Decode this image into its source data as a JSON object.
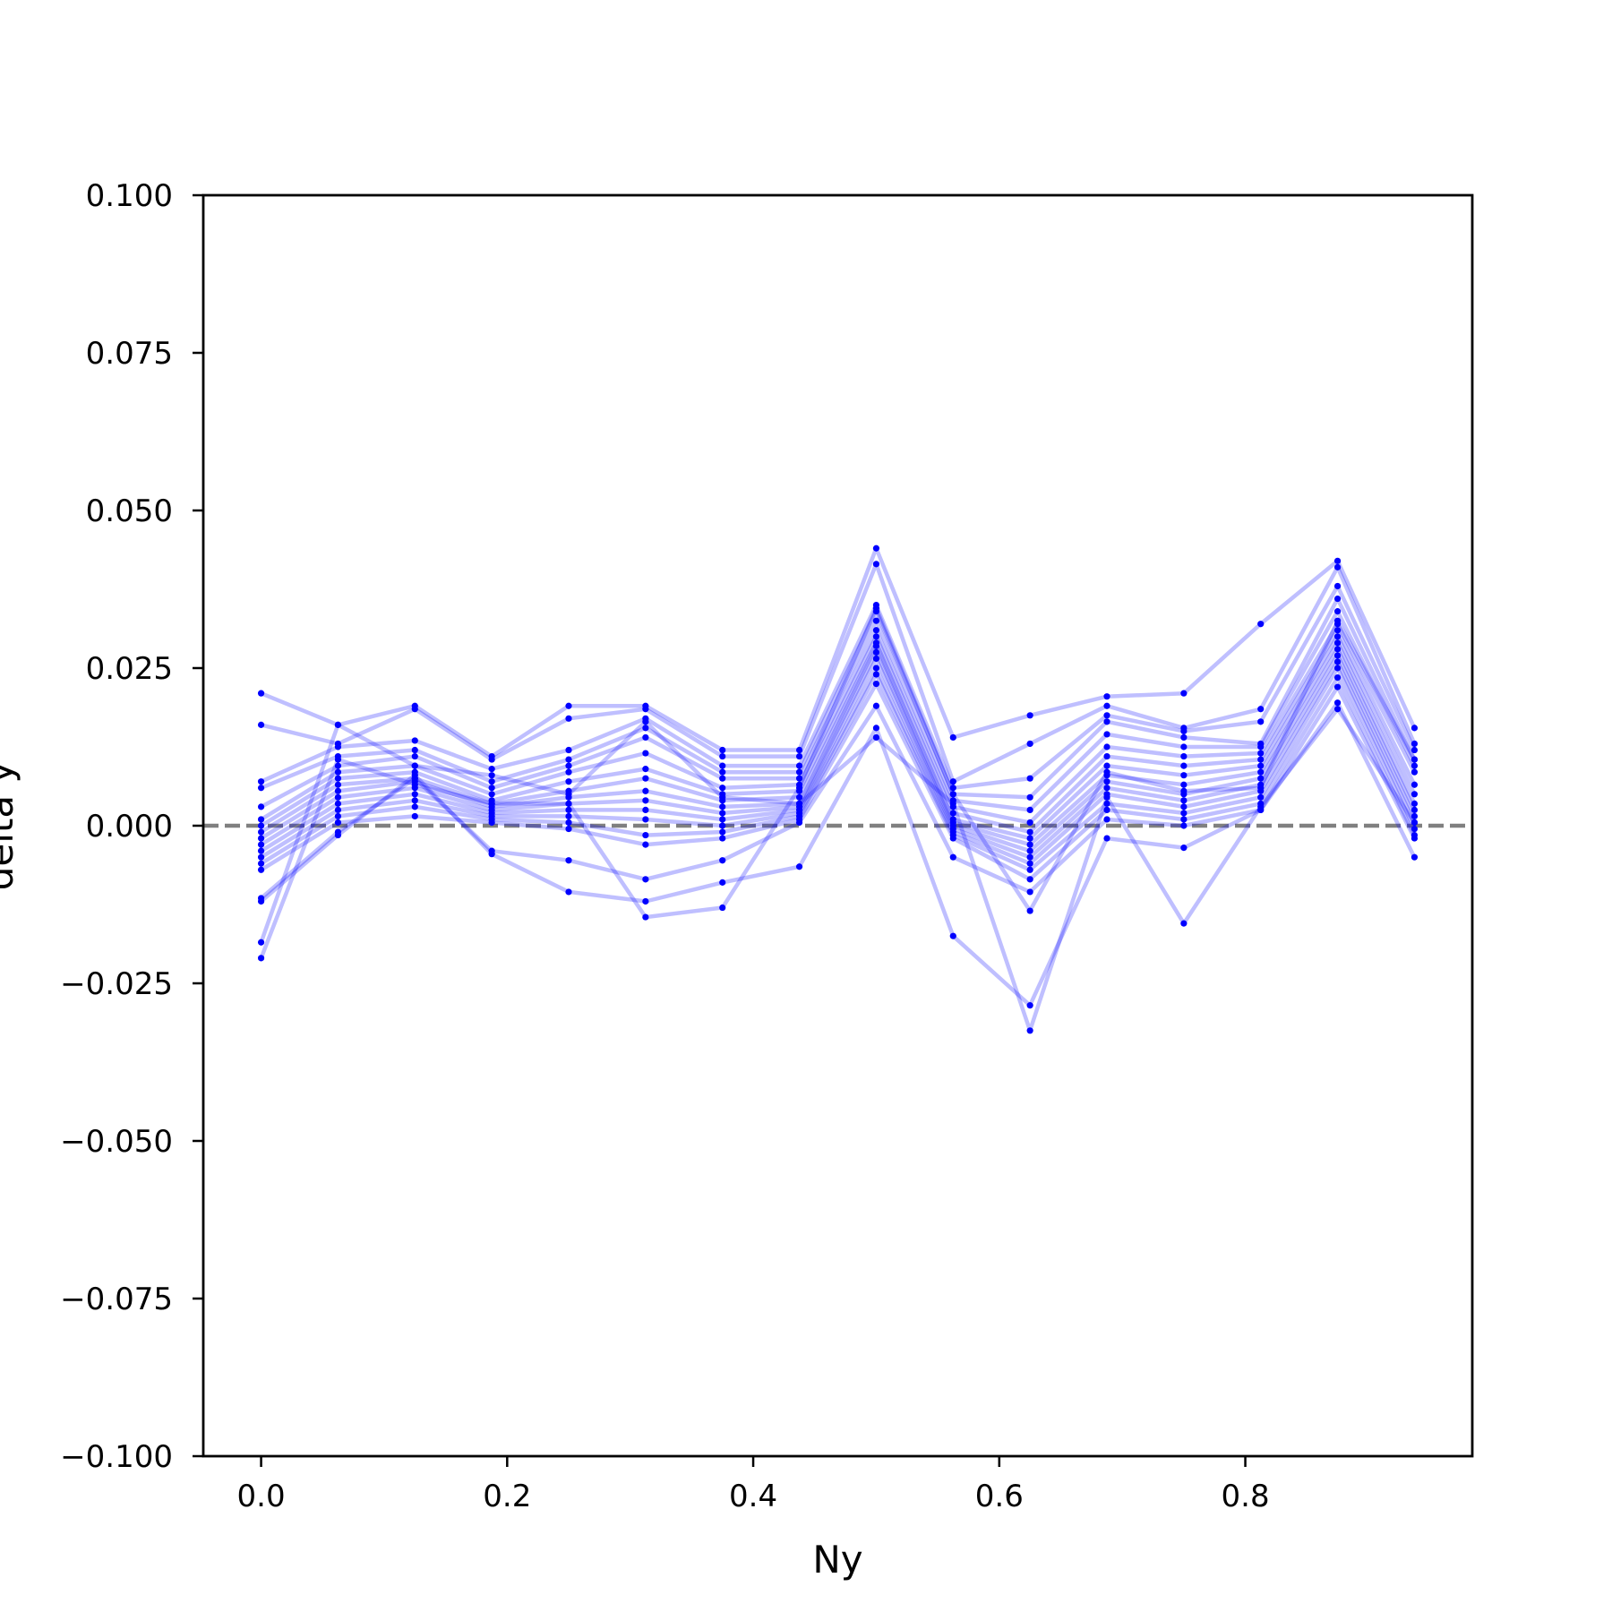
{
  "chart_data": {
    "type": "line",
    "title": "",
    "xlabel": "Ny",
    "ylabel": "delta y",
    "xlim": [
      -0.047,
      0.9845
    ],
    "ylim": [
      -0.1,
      0.1
    ],
    "xticks": [
      0.0,
      0.2,
      0.4,
      0.6,
      0.8
    ],
    "xtick_labels": [
      "0.0",
      "0.2",
      "0.4",
      "0.6",
      "0.8"
    ],
    "yticks": [
      0.1,
      0.075,
      0.05,
      0.025,
      0.0,
      -0.025,
      -0.05,
      -0.075,
      -0.1
    ],
    "ytick_labels": [
      "0.100",
      "0.075",
      "0.050",
      "0.025",
      "0.000",
      "−0.025",
      "−0.050",
      "−0.075",
      "−0.100"
    ],
    "grid": false,
    "reference_line": {
      "y": 0.0,
      "style": "dashed",
      "color": "#808080"
    },
    "line_color": "#0000ff",
    "line_opacity": 0.25,
    "x": [
      0.0,
      0.0625,
      0.125,
      0.1875,
      0.25,
      0.3125,
      0.375,
      0.4375,
      0.5,
      0.5625,
      0.625,
      0.6875,
      0.75,
      0.8125,
      0.875,
      0.9375
    ],
    "series": [
      {
        "values": [
          0.021,
          0.016,
          0.019,
          0.011,
          0.019,
          0.019,
          0.012,
          0.012,
          0.044,
          0.014,
          0.0175,
          0.0205,
          0.021,
          0.032,
          0.042,
          0.0155
        ]
      },
      {
        "values": [
          0.016,
          0.013,
          0.0185,
          0.0105,
          0.017,
          0.0185,
          0.011,
          0.011,
          0.0415,
          0.007,
          0.013,
          0.019,
          0.0155,
          0.0185,
          0.041,
          0.013
        ]
      },
      {
        "values": [
          0.007,
          0.0125,
          0.0135,
          0.009,
          0.012,
          0.017,
          0.0095,
          0.0095,
          0.035,
          0.006,
          0.0075,
          0.0175,
          0.015,
          0.0165,
          0.038,
          0.012
        ]
      },
      {
        "values": [
          0.006,
          0.011,
          0.012,
          0.007,
          0.0105,
          0.0155,
          0.0085,
          0.0085,
          0.034,
          0.005,
          0.0045,
          0.0165,
          0.014,
          0.013,
          0.036,
          0.0105
        ]
      },
      {
        "values": [
          0.003,
          0.0095,
          0.011,
          0.006,
          0.0095,
          0.014,
          0.0075,
          0.0075,
          0.0325,
          0.004,
          0.0025,
          0.0145,
          0.0125,
          0.0125,
          0.034,
          0.0095
        ]
      },
      {
        "values": [
          0.001,
          0.0085,
          0.0095,
          0.005,
          0.0085,
          0.0115,
          0.006,
          0.0065,
          0.031,
          0.003,
          0.0005,
          0.0125,
          0.011,
          0.0115,
          0.032,
          0.0085
        ]
      },
      {
        "values": [
          0.0,
          0.0075,
          0.0085,
          0.004,
          0.007,
          0.009,
          0.005,
          0.0055,
          0.03,
          0.002,
          -0.001,
          0.011,
          0.0095,
          0.0105,
          0.031,
          0.0065
        ]
      },
      {
        "values": [
          -0.001,
          0.0065,
          0.0075,
          0.0035,
          0.0055,
          0.0075,
          0.004,
          0.0045,
          0.029,
          0.001,
          -0.002,
          0.0095,
          0.008,
          0.0095,
          0.03,
          0.005
        ]
      },
      {
        "values": [
          -0.002,
          0.0055,
          0.007,
          0.003,
          0.0045,
          0.0055,
          0.003,
          0.0035,
          0.0285,
          0.0005,
          -0.003,
          0.008,
          0.0065,
          0.0085,
          0.029,
          0.0035
        ]
      },
      {
        "values": [
          -0.003,
          0.0045,
          0.006,
          0.0025,
          0.0035,
          0.004,
          0.002,
          0.003,
          0.0275,
          0.0,
          -0.004,
          0.007,
          0.005,
          0.0075,
          0.028,
          0.0025
        ]
      },
      {
        "values": [
          -0.004,
          0.0035,
          0.005,
          0.002,
          0.0025,
          0.0025,
          0.001,
          0.0025,
          0.0265,
          -0.0005,
          -0.005,
          0.006,
          0.004,
          0.0065,
          0.027,
          0.0015
        ]
      },
      {
        "values": [
          -0.005,
          0.0025,
          0.004,
          0.0015,
          0.0015,
          0.001,
          0.0,
          0.002,
          0.025,
          -0.001,
          -0.006,
          0.005,
          0.003,
          0.0055,
          0.026,
          0.0005
        ]
      },
      {
        "values": [
          -0.006,
          0.0015,
          0.003,
          0.001,
          0.0005,
          -0.0015,
          -0.001,
          0.0015,
          0.024,
          -0.0015,
          -0.007,
          0.0035,
          0.002,
          0.0045,
          0.025,
          -0.0005
        ]
      },
      {
        "values": [
          -0.007,
          0.0005,
          0.0015,
          0.0005,
          -0.0005,
          -0.003,
          -0.002,
          0.001,
          0.0225,
          -0.002,
          -0.0085,
          0.0025,
          0.001,
          0.0035,
          0.0235,
          -0.0015
        ]
      },
      {
        "values": [
          -0.0115,
          -0.001,
          0.0075,
          -0.004,
          -0.0055,
          -0.0085,
          -0.0055,
          0.0005,
          0.019,
          -0.005,
          -0.0105,
          0.001,
          0.0,
          0.0025,
          0.022,
          -0.002
        ]
      },
      {
        "values": [
          -0.012,
          -0.0015,
          0.008,
          -0.0045,
          -0.0105,
          -0.012,
          -0.009,
          -0.0065,
          0.0155,
          -0.0175,
          -0.0285,
          -0.002,
          -0.0035,
          0.0025,
          0.0195,
          -0.005
        ]
      },
      {
        "values": [
          -0.0185,
          0.016,
          0.0095,
          0.008,
          0.005,
          0.0165,
          0.0045,
          0.0035,
          0.014,
          0.0035,
          -0.0325,
          0.0045,
          -0.0155,
          0.003,
          0.0185,
          0.0005
        ]
      },
      {
        "values": [
          -0.021,
          0.0105,
          0.0065,
          0.0035,
          0.0035,
          -0.0145,
          -0.013,
          0.006,
          0.0345,
          0.005,
          -0.0135,
          0.0085,
          0.0055,
          0.006,
          0.0325,
          0.0105
        ]
      }
    ]
  }
}
